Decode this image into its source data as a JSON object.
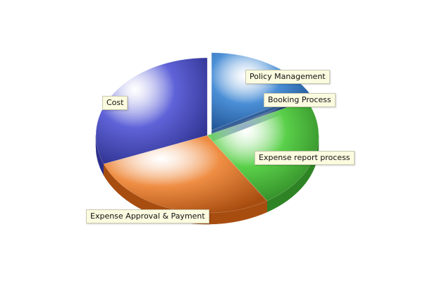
{
  "chart_data": {
    "type": "pie",
    "style": "3d-exploded",
    "slices": [
      {
        "name": "Policy Management",
        "value": 17,
        "color": "#4b8fd6",
        "dark": "#1d4f8f",
        "exploded": true
      },
      {
        "name": "Booking Process",
        "value": 0.6,
        "color": "#25467a",
        "dark": "#132843",
        "exploded": false
      },
      {
        "name": "Expense report process",
        "value": 23.4,
        "color": "#5ad04a",
        "dark": "#2e8424",
        "exploded": false
      },
      {
        "name": "Expense Approval & Payment",
        "value": 28,
        "color": "#ef8e44",
        "dark": "#a84d10",
        "exploded": false
      },
      {
        "name": "Cost",
        "value": 31,
        "color": "#5f63d8",
        "dark": "#2c2f8a",
        "exploded": false
      }
    ]
  }
}
